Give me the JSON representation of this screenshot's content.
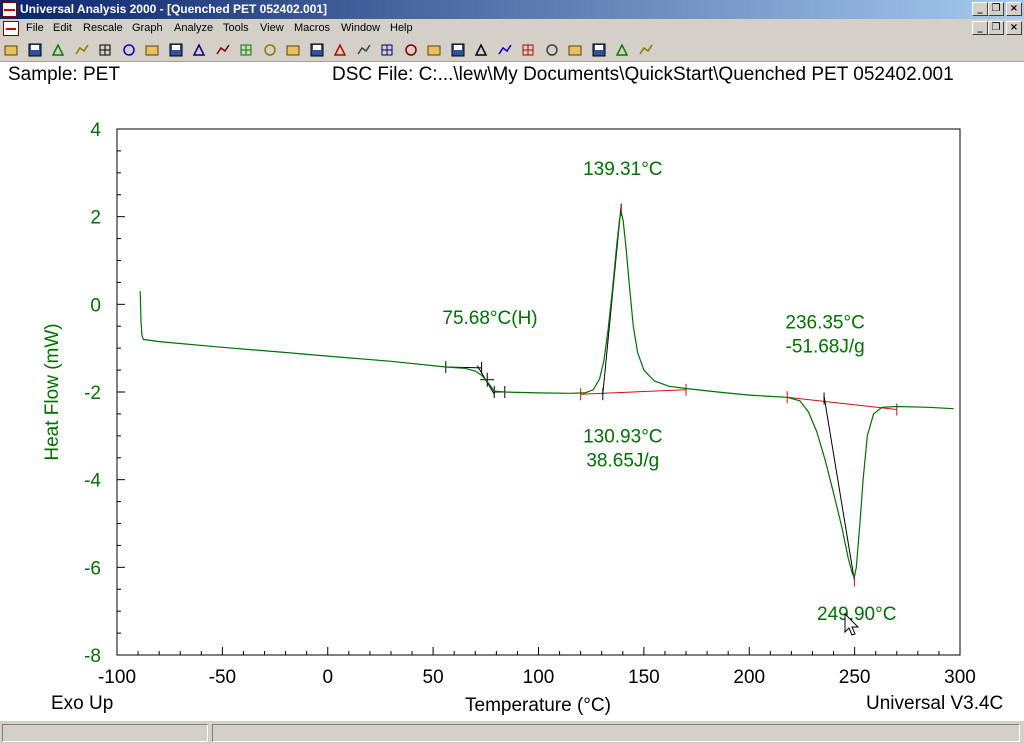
{
  "window": {
    "title": "Universal Analysis 2000 - [Quenched PET 052402.001]"
  },
  "menu": {
    "items": [
      "File",
      "Edit",
      "Rescale",
      "Graph",
      "Analyze",
      "Tools",
      "View",
      "Macros",
      "Window",
      "Help"
    ]
  },
  "toolbar": {
    "icons": [
      "open-icon",
      "save-icon",
      "save-as-icon",
      "export-icon",
      "print-icon",
      "print-preview-icon",
      "pen-icon",
      "cursor-icon",
      "zoom-icon",
      "axes-icon",
      "grid-icon",
      "marker-icon",
      "range-icon",
      "limit-icon",
      "signal-icon",
      "peak-icon",
      "auto-icon",
      "funnel-icon",
      "glass-transition-icon",
      "onset-icon",
      "peak-max-icon",
      "tangent-icon",
      "baseline-icon",
      "x-cursor-icon",
      "forward-icon",
      "signal-curve-icon",
      "report-icon",
      "notes-icon"
    ]
  },
  "header": {
    "sample": "Sample: PET",
    "file": "DSC File: C:...\\lew\\My Documents\\QuickStart\\Quenched PET 052402.001"
  },
  "footer": {
    "left": "Exo Up",
    "right": "Universal V3.4C"
  },
  "colors": {
    "curve": "#007000",
    "axis_text": "#007000",
    "baseline": "#d01010",
    "tangent": "#000000"
  },
  "chart_data": {
    "type": "line",
    "xlabel": "Temperature (°C)",
    "ylabel": "Heat Flow (mW)",
    "xlim": [
      -100,
      300
    ],
    "ylim": [
      -8,
      4
    ],
    "xticks": [
      -100,
      -50,
      0,
      50,
      100,
      150,
      200,
      250,
      300
    ],
    "yticks": [
      -8,
      -6,
      -4,
      -2,
      0,
      2,
      4
    ],
    "series": [
      {
        "values": [
          [
            -89,
            0.3
          ],
          [
            -88.6,
            -0.4
          ],
          [
            -88.2,
            -0.7
          ],
          [
            -87.5,
            -0.8
          ],
          [
            -80,
            -0.85
          ],
          [
            -50,
            -0.98
          ],
          [
            -20,
            -1.1
          ],
          [
            0,
            -1.18
          ],
          [
            30,
            -1.3
          ],
          [
            56,
            -1.43
          ],
          [
            65,
            -1.46
          ],
          [
            70,
            -1.52
          ],
          [
            73,
            -1.62
          ],
          [
            75,
            -1.72
          ],
          [
            77,
            -1.85
          ],
          [
            79,
            -1.98
          ],
          [
            84,
            -2.0
          ],
          [
            90,
            -2.01
          ],
          [
            100,
            -2.02
          ],
          [
            115,
            -2.03
          ],
          [
            122,
            -2.02
          ],
          [
            126,
            -1.95
          ],
          [
            129,
            -1.7
          ],
          [
            131,
            -1.3
          ],
          [
            133,
            -0.6
          ],
          [
            135,
            0.3
          ],
          [
            137,
            1.3
          ],
          [
            138.5,
            1.95
          ],
          [
            139.3,
            2.1
          ],
          [
            140.2,
            1.9
          ],
          [
            141.5,
            1.3
          ],
          [
            143,
            0.5
          ],
          [
            145,
            -0.5
          ],
          [
            147,
            -1.1
          ],
          [
            150,
            -1.5
          ],
          [
            155,
            -1.75
          ],
          [
            162,
            -1.87
          ],
          [
            170,
            -1.92
          ],
          [
            185,
            -2.0
          ],
          [
            200,
            -2.07
          ],
          [
            210,
            -2.1
          ],
          [
            218,
            -2.12
          ],
          [
            224,
            -2.2
          ],
          [
            228,
            -2.45
          ],
          [
            232,
            -2.9
          ],
          [
            236,
            -3.55
          ],
          [
            240,
            -4.3
          ],
          [
            244,
            -5.1
          ],
          [
            247,
            -5.8
          ],
          [
            249,
            -6.15
          ],
          [
            249.9,
            -6.22
          ],
          [
            250.8,
            -6.0
          ],
          [
            252.5,
            -5.0
          ],
          [
            254,
            -4.0
          ],
          [
            256,
            -3.0
          ],
          [
            259,
            -2.5
          ],
          [
            263,
            -2.35
          ],
          [
            270,
            -2.33
          ],
          [
            285,
            -2.35
          ],
          [
            297,
            -2.38
          ]
        ]
      }
    ],
    "annotations": [
      {
        "text": "139.31°C",
        "x": 140,
        "y": 2.95
      },
      {
        "text": "75.68°C(H)",
        "x": 77,
        "y": -0.45
      },
      {
        "text": "236.35°C",
        "x": 236,
        "y": -0.55
      },
      {
        "text": "-51.68J/g",
        "x": 236,
        "y": -1.1
      },
      {
        "text": "130.93°C",
        "x": 140,
        "y": -3.15
      },
      {
        "text": "38.65J/g",
        "x": 140,
        "y": -3.7
      },
      {
        "text": "249.90°C",
        "x": 251,
        "y": -7.2
      }
    ]
  }
}
